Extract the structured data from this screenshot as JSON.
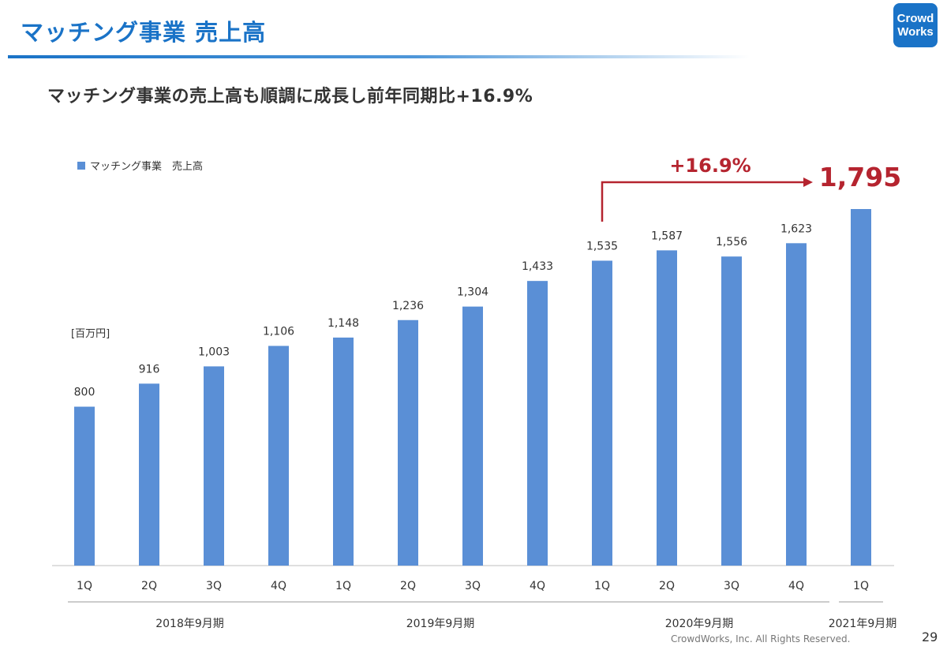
{
  "header": {
    "title": "マッチング事業 売上高",
    "logo_line1": "Crowd",
    "logo_line2": "Works"
  },
  "subtitle": "マッチング事業の売上高も順調に成長し前年同期比+16.9%",
  "unit": "[百万円]",
  "colors": {
    "bar": "#5a8fd6",
    "accent": "#b5242f",
    "brand": "#1a73c7"
  },
  "chart_data": {
    "type": "bar",
    "series": [
      {
        "name": "マッチング事業　売上高",
        "values": [
          800,
          916,
          1003,
          1106,
          1148,
          1236,
          1304,
          1433,
          1535,
          1587,
          1556,
          1623,
          1795
        ]
      }
    ],
    "categories": [
      "1Q",
      "2Q",
      "3Q",
      "4Q",
      "1Q",
      "2Q",
      "3Q",
      "4Q",
      "1Q",
      "2Q",
      "3Q",
      "4Q",
      "1Q"
    ],
    "value_labels": [
      "800",
      "916",
      "1,003",
      "1,106",
      "1,148",
      "1,236",
      "1,304",
      "1,433",
      "1,535",
      "1,587",
      "1,556",
      "1,623",
      "1,795"
    ],
    "groups": [
      {
        "label": "2018年9月期",
        "start": 0,
        "end": 3
      },
      {
        "label": "2019年9月期",
        "start": 4,
        "end": 7
      },
      {
        "label": "2020年9月期",
        "start": 8,
        "end": 11
      },
      {
        "label": "2021年9月期",
        "start": 12,
        "end": 12
      }
    ],
    "ylim": [
      0,
      1795
    ],
    "grid": false,
    "legend_position": "top-left",
    "annotation": {
      "from_index": 8,
      "to_index": 12,
      "text": "+16.9%"
    }
  },
  "footer": {
    "copyright": "CrowdWorks, Inc. All Rights Reserved.",
    "page_number": "29"
  }
}
